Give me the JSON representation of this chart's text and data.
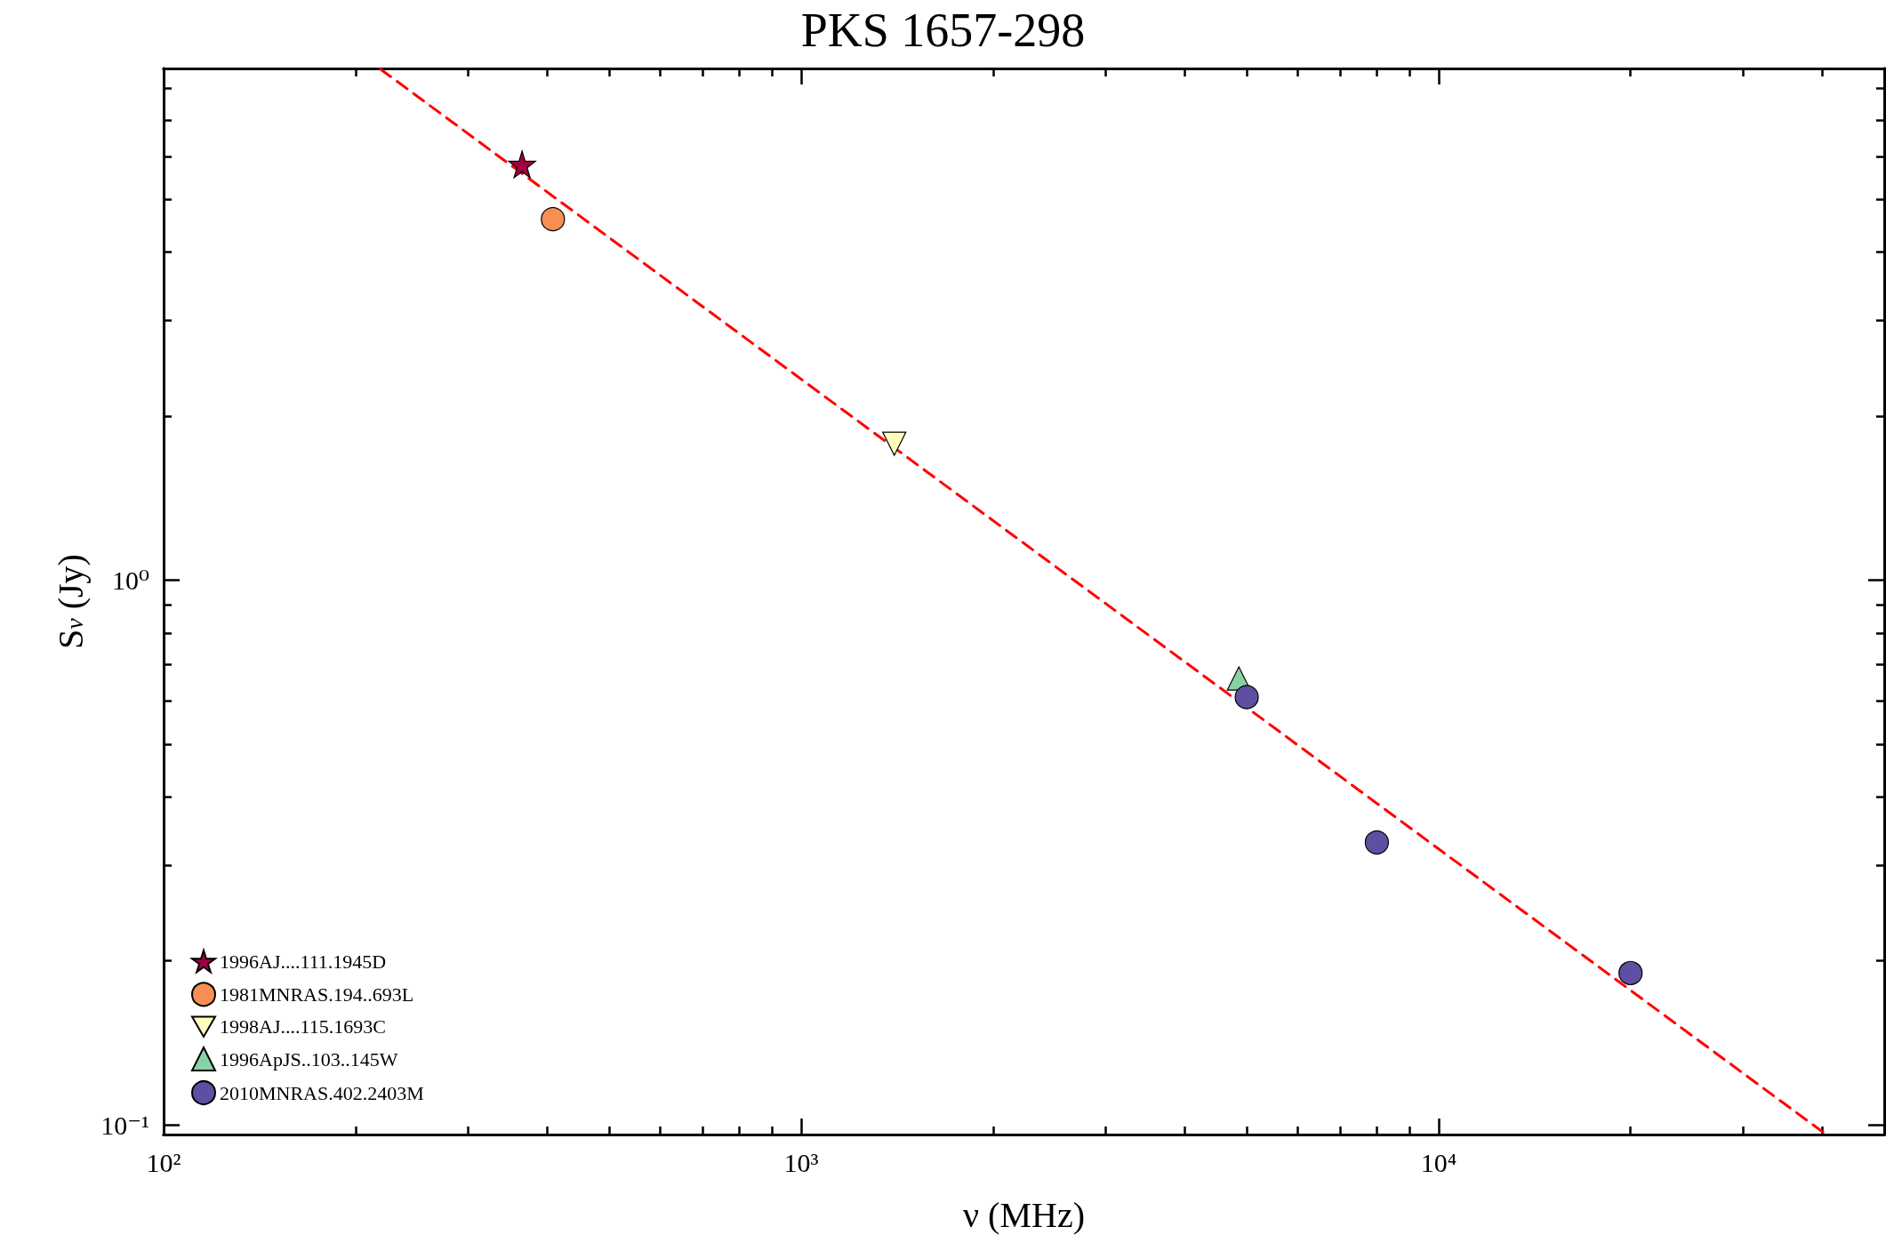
{
  "chart_data": {
    "type": "scatter",
    "title": "PKS 1657-298",
    "xlabel": "ν (MHz)",
    "ylabel": "S$_{ν}$ (Jy)",
    "log": "xy",
    "xlim": [
      100,
      50000
    ],
    "ylim": [
      0.096,
      8.7
    ],
    "xticks": [
      {
        "value": 100,
        "label": "10²"
      },
      {
        "value": 200,
        "label": null
      },
      {
        "value": 300,
        "label": null
      },
      {
        "value": 400,
        "label": null
      },
      {
        "value": 500,
        "label": null
      },
      {
        "value": 600,
        "label": null
      },
      {
        "value": 700,
        "label": null
      },
      {
        "value": 800,
        "label": null
      },
      {
        "value": 900,
        "label": null
      },
      {
        "value": 1000,
        "label": "10³"
      },
      {
        "value": 2000,
        "label": null
      },
      {
        "value": 3000,
        "label": null
      },
      {
        "value": 4000,
        "label": null
      },
      {
        "value": 5000,
        "label": null
      },
      {
        "value": 6000,
        "label": null
      },
      {
        "value": 7000,
        "label": null
      },
      {
        "value": 8000,
        "label": null
      },
      {
        "value": 9000,
        "label": null
      },
      {
        "value": 10000,
        "label": "10⁴"
      },
      {
        "value": 20000,
        "label": null
      },
      {
        "value": 30000,
        "label": null
      },
      {
        "value": 40000,
        "label": null
      }
    ],
    "yticks": [
      {
        "value": 0.1,
        "label": "10⁻¹"
      },
      {
        "value": 0.2,
        "label": null
      },
      {
        "value": 0.3,
        "label": null
      },
      {
        "value": 0.4,
        "label": null
      },
      {
        "value": 0.5,
        "label": null
      },
      {
        "value": 0.6,
        "label": null
      },
      {
        "value": 0.7,
        "label": null
      },
      {
        "value": 0.8,
        "label": null
      },
      {
        "value": 0.9,
        "label": null
      },
      {
        "value": 1,
        "label": "10⁰"
      },
      {
        "value": 2,
        "label": null
      },
      {
        "value": 3,
        "label": null
      },
      {
        "value": 4,
        "label": null
      },
      {
        "value": 5,
        "label": null
      },
      {
        "value": 6,
        "label": null
      },
      {
        "value": 7,
        "label": null
      },
      {
        "value": 8,
        "label": null
      }
    ],
    "grid": false,
    "legend": "bottom left",
    "series": [
      {
        "name": "1996AJ....111.1945D",
        "color": "#9e0142",
        "marker": "star",
        "x": [
          365
        ],
        "values": [
          5.8
        ]
      },
      {
        "name": "1981MNRAS.194..693L",
        "color": "#f98e52",
        "marker": "circle",
        "x": [
          408
        ],
        "values": [
          4.6
        ]
      },
      {
        "name": "1998AJ....115.1693C",
        "color": "#fefebd",
        "marker": "triangle-down",
        "x": [
          1400
        ],
        "values": [
          1.78
        ]
      },
      {
        "name": "1996ApJS..103..145W",
        "color": "#89d0a5",
        "marker": "triangle",
        "x": [
          4860
        ],
        "values": [
          0.66
        ]
      },
      {
        "name": "2010MNRAS.402.2403M",
        "color": "#5e4fa2",
        "marker": "circle",
        "x": [
          5000,
          8000,
          20000
        ],
        "values": [
          0.61,
          0.33,
          0.19
        ]
      },
      {
        "type": "line",
        "color": "#ff0000",
        "line_style": "dashed",
        "marker": "none",
        "x": [
          219,
          40550
        ],
        "values": [
          8.67,
          0.096
        ]
      }
    ]
  }
}
